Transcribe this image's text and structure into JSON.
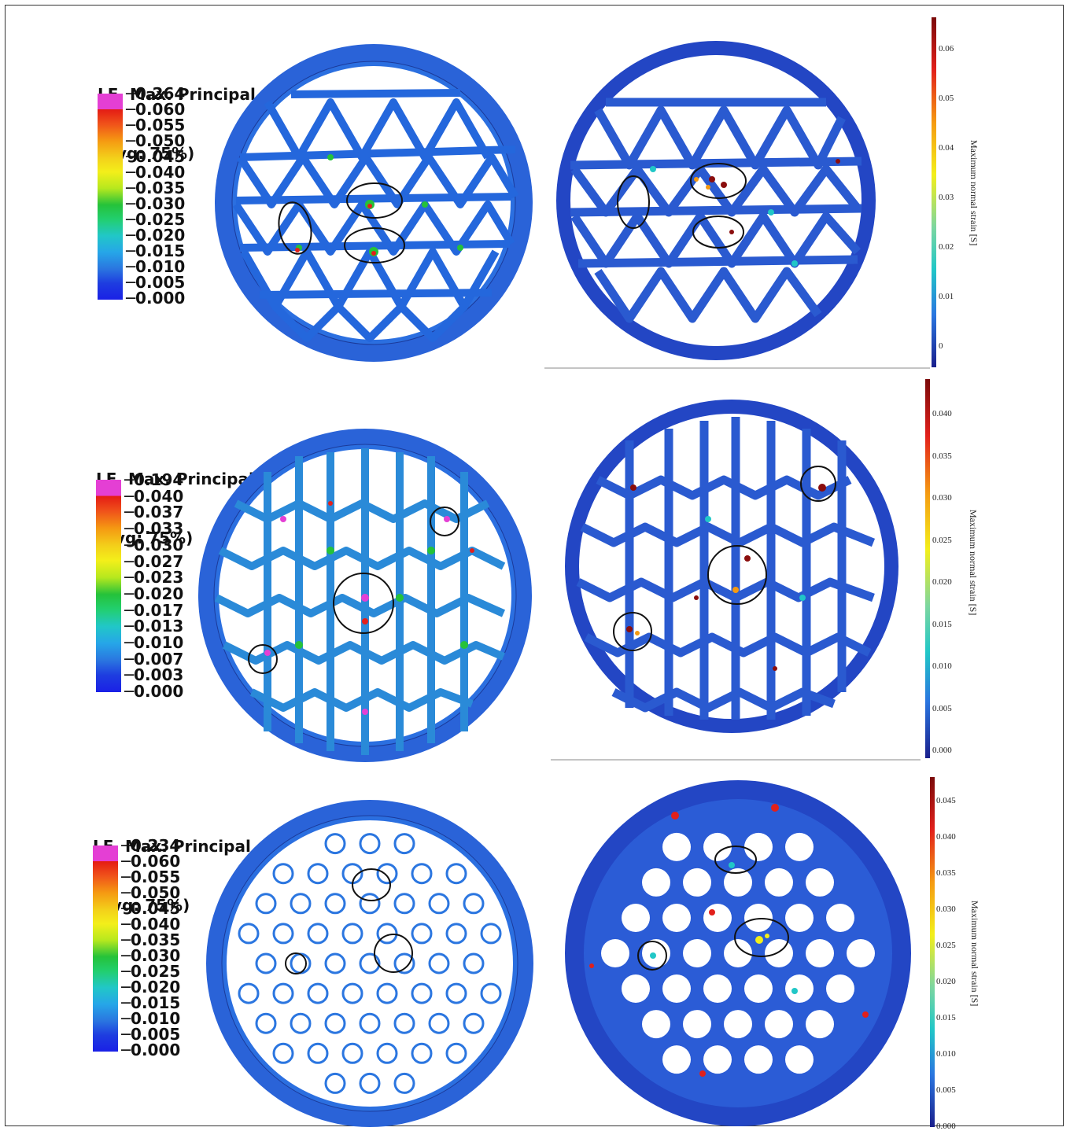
{
  "abaqus_panels": [
    {
      "title_line1": "LE, Max. Principal",
      "title_line2": "(Avg: 75%)",
      "labels": [
        "0.264",
        "0.060",
        "0.055",
        "0.050",
        "0.045",
        "0.040",
        "0.035",
        "0.030",
        "0.025",
        "0.020",
        "0.015",
        "0.010",
        "0.005",
        "0.000"
      ]
    },
    {
      "title_line1": "LE, Max. Principal",
      "title_line2": "(Avg: 75%)",
      "labels": [
        "0.194",
        "0.040",
        "0.037",
        "0.033",
        "0.030",
        "0.027",
        "0.023",
        "0.020",
        "0.017",
        "0.013",
        "0.010",
        "0.007",
        "0.003",
        "0.000"
      ]
    },
    {
      "title_line1": "LE, Max. Principal",
      "title_line2": "(Avg: 75%)",
      "labels": [
        "0.234",
        "0.060",
        "0.055",
        "0.050",
        "0.045",
        "0.040",
        "0.035",
        "0.030",
        "0.025",
        "0.020",
        "0.015",
        "0.010",
        "0.005",
        "0.000"
      ]
    }
  ],
  "dic_panels": [
    {
      "axis_title": "Maximum normal strain [S]",
      "ticks": [
        "0.06",
        "0.05",
        "0.04",
        "0.03",
        "0.02",
        "0.01",
        "0"
      ]
    },
    {
      "axis_title": "Maximum normal strain [S]",
      "ticks": [
        "0.040",
        "0.035",
        "0.030",
        "0.025",
        "0.020",
        "0.015",
        "0.010",
        "0.005",
        "0.000"
      ]
    },
    {
      "axis_title": "Maximum normal strain [S]",
      "ticks": [
        "0.045",
        "0.040",
        "0.035",
        "0.030",
        "0.025",
        "0.020",
        "0.015",
        "0.010",
        "0.005",
        "0.000"
      ]
    }
  ],
  "colors": {
    "low": "#1e3de0",
    "ring": "#2a63d8",
    "mid": "#21c7c7",
    "green": "#25c23a",
    "yellow": "#f3ef1a",
    "orange": "#f59a12",
    "red": "#e2201b",
    "peak": "#e43fd4",
    "dic_dark": "#1a1f8c",
    "dic_red": "#8a0d0d"
  }
}
